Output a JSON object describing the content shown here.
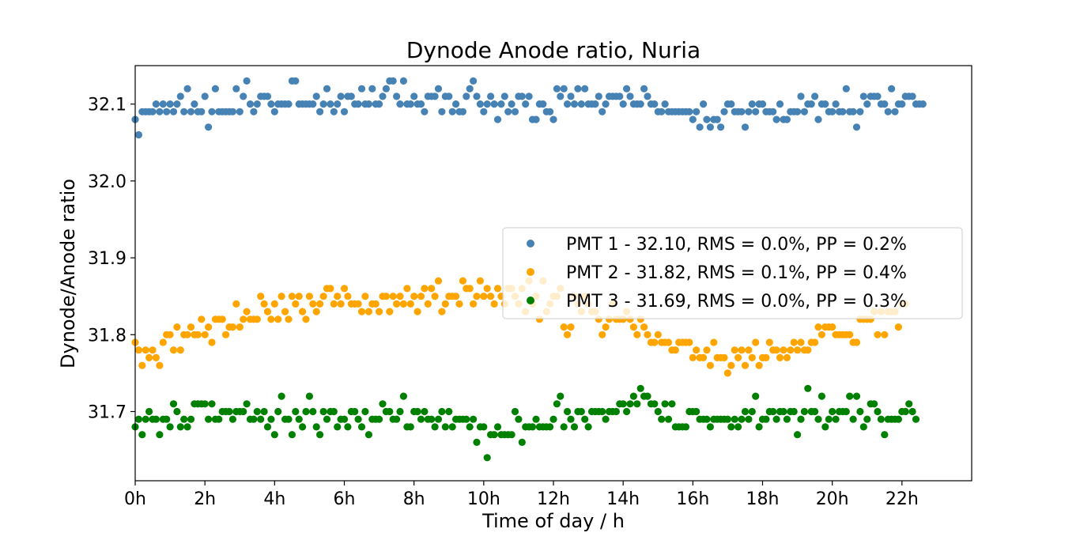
{
  "chart_data": {
    "type": "scatter",
    "title": "Dynode Anode ratio, Nuria",
    "xlabel": "Time of day / h",
    "ylabel": "Dynode/Anode ratio",
    "xlim": [
      0,
      24
    ],
    "ylim": [
      31.61,
      32.15
    ],
    "x_ticks": [
      0,
      2,
      4,
      6,
      8,
      10,
      12,
      14,
      16,
      18,
      20,
      22
    ],
    "x_tick_labels": [
      "0h",
      "2h",
      "4h",
      "6h",
      "8h",
      "10h",
      "12h",
      "14h",
      "16h",
      "18h",
      "20h",
      "22h"
    ],
    "y_ticks": [
      31.7,
      31.8,
      31.9,
      32.0,
      32.1
    ],
    "y_tick_labels": [
      "31.7",
      "31.8",
      "31.9",
      "32.0",
      "32.1"
    ],
    "grid": false,
    "legend_position": "center-right",
    "x": [
      0,
      0.1,
      0.2,
      0.3,
      0.4,
      0.5,
      0.6,
      0.7,
      0.8,
      0.9,
      1,
      1.1,
      1.2,
      1.3,
      1.4,
      1.5,
      1.6,
      1.7,
      1.8,
      1.9,
      2,
      2.1,
      2.2,
      2.3,
      2.4,
      2.5,
      2.6,
      2.7,
      2.8,
      2.9,
      3,
      3.1,
      3.2,
      3.3,
      3.4,
      3.5,
      3.6,
      3.7,
      3.8,
      3.9,
      4,
      4.1,
      4.2,
      4.3,
      4.4,
      4.5,
      4.6,
      4.7,
      4.8,
      4.9,
      5,
      5.1,
      5.2,
      5.3,
      5.4,
      5.5,
      5.6,
      5.7,
      5.8,
      5.9,
      6,
      6.1,
      6.2,
      6.3,
      6.4,
      6.5,
      6.6,
      6.7,
      6.8,
      6.9,
      7,
      7.1,
      7.2,
      7.3,
      7.4,
      7.5,
      7.6,
      7.7,
      7.8,
      7.9,
      8,
      8.1,
      8.2,
      8.3,
      8.4,
      8.5,
      8.6,
      8.7,
      8.8,
      8.9,
      9,
      9.1,
      9.2,
      9.3,
      9.4,
      9.5,
      9.6,
      9.7,
      9.8,
      9.9,
      10,
      10.1,
      10.2,
      10.3,
      10.4,
      10.5,
      10.6,
      10.7,
      10.8,
      10.9,
      11,
      11.1,
      11.2,
      11.3,
      11.4,
      11.5,
      11.6,
      11.7,
      11.8,
      11.9,
      12,
      12.1,
      12.2,
      12.3,
      12.4,
      12.5,
      12.6,
      12.7,
      12.8,
      12.9,
      13,
      13.1,
      13.2,
      13.3,
      13.4,
      13.5,
      13.6,
      13.7,
      13.8,
      13.9,
      14,
      14.1,
      14.2,
      14.3,
      14.4,
      14.5,
      14.6,
      14.7,
      14.8,
      14.9,
      15,
      15.1,
      15.2,
      15.3,
      15.4,
      15.5,
      15.6,
      15.7,
      15.8,
      15.9,
      16,
      16.1,
      16.2,
      16.3,
      16.4,
      16.5,
      16.6,
      16.7,
      16.8,
      16.9,
      17,
      17.1,
      17.2,
      17.3,
      17.4,
      17.5,
      17.6,
      17.7,
      17.8,
      17.9,
      18,
      18.1,
      18.2,
      18.3,
      18.4,
      18.5,
      18.6,
      18.7,
      18.8,
      18.9,
      19,
      19.1,
      19.2,
      19.3,
      19.4,
      19.5,
      19.6,
      19.7,
      19.8,
      19.9,
      20,
      20.1,
      20.2,
      20.3,
      20.4,
      20.5,
      20.6,
      20.7,
      20.8,
      20.9,
      21,
      21.1,
      21.2,
      21.3,
      21.4,
      21.5,
      21.6,
      21.7,
      21.8,
      21.9,
      22,
      22.1,
      22.2,
      22.3,
      22.4,
      22.5,
      22.6,
      22.7,
      22.8,
      22.9,
      23,
      23.1,
      23.2,
      23.3,
      23.4,
      23.5,
      23.6,
      23.7,
      23.8
    ],
    "series": [
      {
        "name": "PMT 1 - 32.10, RMS = 0.0%, PP = 0.2%",
        "color": "#4682b4",
        "values": [
          32.08,
          32.06,
          32.09,
          32.09,
          32.09,
          32.09,
          32.1,
          32.09,
          32.1,
          32.09,
          32.1,
          32.09,
          32.1,
          32.11,
          32.09,
          32.12,
          32.09,
          32.1,
          32.09,
          32.09,
          32.11,
          32.07,
          32.09,
          32.12,
          32.09,
          32.09,
          32.09,
          32.09,
          32.09,
          32.12,
          32.09,
          32.11,
          32.13,
          32.1,
          32.09,
          32.1,
          32.11,
          32.11,
          32.11,
          32.1,
          32.09,
          32.1,
          32.1,
          32.1,
          32.1,
          32.13,
          32.13,
          32.1,
          32.1,
          32.1,
          32.1,
          32.1,
          32.11,
          32.09,
          32.1,
          32.12,
          32.1,
          32.09,
          32.1,
          32.11,
          32.09,
          32.11,
          32.11,
          32.1,
          32.1,
          32.12,
          32.1,
          32.1,
          32.12,
          32.1,
          32.1,
          32.11,
          32.12,
          32.13,
          32.13,
          32.11,
          32.1,
          32.13,
          32.1,
          32.1,
          32.11,
          32.1,
          32.1,
          32.09,
          32.11,
          32.11,
          32.11,
          32.12,
          32.09,
          32.11,
          32.11,
          32.09,
          32.1,
          32.09,
          32.09,
          32.11,
          32.12,
          32.13,
          32.11,
          32.1,
          32.09,
          32.1,
          32.11,
          32.1,
          32.08,
          32.1,
          32.11,
          32.09,
          32.1,
          32.09,
          32.11,
          32.11,
          32.1,
          32.11,
          32.08,
          32.08,
          32.1,
          32.1,
          32.09,
          32.09,
          32.08,
          32.12,
          32.11,
          32.12,
          32.1,
          32.11,
          32.1,
          32.12,
          32.1,
          32.12,
          32.1,
          32.1,
          32.1,
          32.11,
          32.09,
          32.1,
          32.11,
          32.11,
          32.11,
          32.11,
          32.1,
          32.12,
          32.11,
          32.1,
          32.1,
          32.1,
          32.12,
          32.11,
          32.1,
          32.1,
          32.09,
          32.09,
          32.1,
          32.09,
          32.09,
          32.09,
          32.09,
          32.09,
          32.09,
          32.09,
          32.08,
          32.09,
          32.07,
          32.1,
          32.08,
          32.07,
          32.08,
          32.08,
          32.07,
          32.09,
          32.1,
          32.1,
          32.09,
          32.09,
          32.09,
          32.07,
          32.09,
          32.1,
          32.09,
          32.1,
          32.1,
          32.09,
          32.09,
          32.09,
          32.08,
          32.1,
          32.08,
          32.08,
          32.09,
          32.09,
          32.09,
          32.11,
          32.09,
          32.1,
          32.1,
          32.11,
          32.08,
          32.1,
          32.1,
          32.09,
          32.09,
          32.1,
          32.09,
          32.09,
          32.12,
          32.09,
          32.09,
          32.07,
          32.09,
          32.11,
          32.1,
          32.11,
          32.11,
          32.11,
          32.1,
          32.1,
          32.09,
          32.12,
          32.09,
          32.1,
          32.1,
          32.11,
          32.11,
          32.11,
          32.1,
          32.1,
          32.1
        ]
      },
      {
        "name": "PMT 2 - 31.82, RMS = 0.1%, PP = 0.4%",
        "color": "#ffa500",
        "values": [
          31.79,
          31.78,
          31.76,
          31.78,
          31.77,
          31.78,
          31.77,
          31.76,
          31.79,
          31.8,
          31.8,
          31.78,
          31.81,
          31.78,
          31.8,
          31.8,
          31.81,
          31.8,
          31.8,
          31.82,
          31.8,
          31.81,
          31.79,
          31.82,
          31.82,
          31.82,
          31.8,
          31.81,
          31.81,
          31.84,
          31.81,
          31.82,
          31.83,
          31.82,
          31.82,
          31.82,
          31.85,
          31.84,
          31.83,
          31.82,
          31.84,
          31.82,
          31.85,
          31.83,
          31.82,
          31.85,
          31.84,
          31.85,
          31.83,
          31.82,
          31.85,
          31.84,
          31.83,
          31.84,
          31.85,
          31.86,
          31.86,
          31.84,
          31.85,
          31.84,
          31.86,
          31.85,
          31.84,
          31.84,
          31.84,
          31.83,
          31.85,
          31.83,
          31.84,
          31.84,
          31.83,
          31.85,
          31.85,
          31.83,
          31.85,
          31.84,
          31.85,
          31.84,
          31.86,
          31.84,
          31.85,
          31.83,
          31.85,
          31.86,
          31.84,
          31.86,
          31.85,
          31.87,
          31.83,
          31.84,
          31.85,
          31.85,
          31.85,
          31.84,
          31.87,
          31.86,
          31.86,
          31.84,
          31.85,
          31.87,
          31.85,
          31.86,
          31.85,
          31.84,
          31.86,
          31.85,
          31.84,
          31.86,
          31.86,
          31.85,
          31.84,
          31.86,
          31.83,
          31.87,
          31.84,
          31.85,
          31.82,
          31.87,
          31.83,
          31.84,
          31.85,
          31.85,
          31.86,
          31.81,
          31.8,
          31.81,
          31.85,
          31.84,
          31.83,
          31.85,
          31.84,
          31.83,
          31.83,
          31.82,
          31.8,
          31.81,
          31.82,
          31.84,
          31.82,
          31.82,
          31.82,
          31.83,
          31.82,
          31.81,
          31.8,
          31.82,
          31.81,
          31.8,
          31.79,
          31.79,
          31.8,
          31.79,
          31.79,
          31.79,
          31.78,
          31.78,
          31.79,
          31.79,
          31.79,
          31.79,
          31.77,
          31.78,
          31.77,
          31.77,
          31.78,
          31.76,
          31.79,
          31.77,
          31.77,
          31.77,
          31.75,
          31.76,
          31.78,
          31.77,
          31.78,
          31.76,
          31.78,
          31.77,
          31.79,
          31.76,
          31.77,
          31.77,
          31.79,
          31.78,
          31.78,
          31.77,
          31.78,
          31.77,
          31.78,
          31.79,
          31.78,
          31.79,
          31.78,
          31.78,
          31.79,
          31.79,
          31.81,
          31.8,
          31.81,
          31.81,
          31.81,
          31.8,
          31.8,
          31.8,
          31.8,
          31.8,
          31.79,
          31.79,
          31.82,
          31.82,
          31.82,
          31.82,
          31.83,
          31.8,
          31.83,
          31.8,
          31.83,
          31.83,
          31.83,
          31.81,
          31.84,
          31.84
        ]
      },
      {
        "name": "PMT 3 - 31.69, RMS = 0.0%, PP = 0.3%",
        "color": "#008000",
        "values": [
          31.68,
          31.69,
          31.67,
          31.69,
          31.7,
          31.69,
          31.69,
          31.67,
          31.69,
          31.69,
          31.68,
          31.71,
          31.7,
          31.68,
          31.69,
          31.68,
          31.69,
          31.71,
          31.71,
          31.71,
          31.71,
          31.69,
          31.71,
          31.69,
          31.69,
          31.7,
          31.7,
          31.7,
          31.69,
          31.7,
          31.7,
          31.7,
          31.71,
          31.69,
          31.69,
          31.7,
          31.69,
          31.7,
          31.68,
          31.69,
          31.67,
          31.7,
          31.72,
          31.69,
          31.69,
          31.67,
          31.7,
          31.69,
          31.68,
          31.7,
          31.72,
          31.7,
          31.68,
          31.67,
          31.7,
          31.69,
          31.7,
          31.7,
          31.68,
          31.69,
          31.69,
          31.68,
          31.7,
          31.7,
          31.69,
          31.68,
          31.7,
          31.67,
          31.69,
          31.69,
          31.69,
          31.71,
          31.7,
          31.7,
          31.69,
          31.69,
          31.7,
          31.72,
          31.68,
          31.68,
          31.7,
          31.7,
          31.69,
          31.7,
          31.69,
          31.69,
          31.68,
          31.69,
          31.7,
          31.68,
          31.7,
          31.68,
          31.69,
          31.69,
          31.69,
          31.69,
          31.68,
          31.69,
          31.66,
          31.68,
          31.68,
          31.64,
          31.67,
          31.67,
          31.68,
          31.67,
          31.67,
          31.67,
          31.67,
          31.7,
          31.69,
          31.66,
          31.68,
          31.68,
          31.68,
          31.69,
          31.68,
          31.68,
          31.68,
          31.68,
          31.69,
          31.71,
          31.72,
          31.68,
          31.7,
          31.69,
          31.68,
          31.7,
          31.7,
          31.69,
          31.68,
          31.7,
          31.7,
          31.7,
          31.7,
          31.69,
          31.7,
          31.7,
          31.7,
          31.71,
          31.71,
          31.7,
          31.71,
          31.72,
          31.71,
          31.73,
          31.72,
          31.72,
          31.71,
          31.71,
          31.7,
          31.69,
          31.71,
          31.69,
          31.71,
          31.68,
          31.68,
          31.68,
          31.68,
          31.7,
          31.7,
          31.7,
          31.69,
          31.69,
          31.69,
          31.68,
          31.69,
          31.69,
          31.69,
          31.69,
          31.69,
          31.68,
          31.69,
          31.68,
          31.69,
          31.7,
          31.69,
          31.7,
          31.72,
          31.68,
          31.69,
          31.69,
          31.7,
          31.7,
          31.69,
          31.7,
          31.7,
          31.69,
          31.7,
          31.7,
          31.67,
          31.69,
          31.7,
          31.73,
          31.7,
          31.7,
          31.69,
          31.72,
          31.68,
          31.69,
          31.7,
          31.69,
          31.7,
          31.7,
          31.7,
          31.72,
          31.69,
          31.72,
          31.7,
          31.68,
          31.69,
          31.71,
          31.71,
          31.7,
          31.69,
          31.67,
          31.69,
          31.69,
          31.69,
          31.69,
          31.7,
          31.7,
          31.71,
          31.7,
          31.69
        ]
      }
    ]
  }
}
